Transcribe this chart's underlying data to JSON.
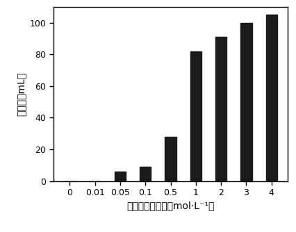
{
  "categories": [
    "0",
    "0.01",
    "0.05",
    "0.1",
    "0.5",
    "1",
    "2",
    "3",
    "4"
  ],
  "values": [
    0,
    0,
    6,
    9,
    28,
    82,
    91,
    100,
    105
  ],
  "bar_color": "#1a1a1a",
  "ylabel": "产氢量（mL）",
  "xlabel": "氢氧化钙的浓度（mol·L⁻¹）",
  "ylim": [
    0,
    110
  ],
  "bar_width": 0.45,
  "background_color": "#ffffff",
  "ylabel_fontsize": 10,
  "xlabel_fontsize": 10,
  "tick_fontsize": 9
}
